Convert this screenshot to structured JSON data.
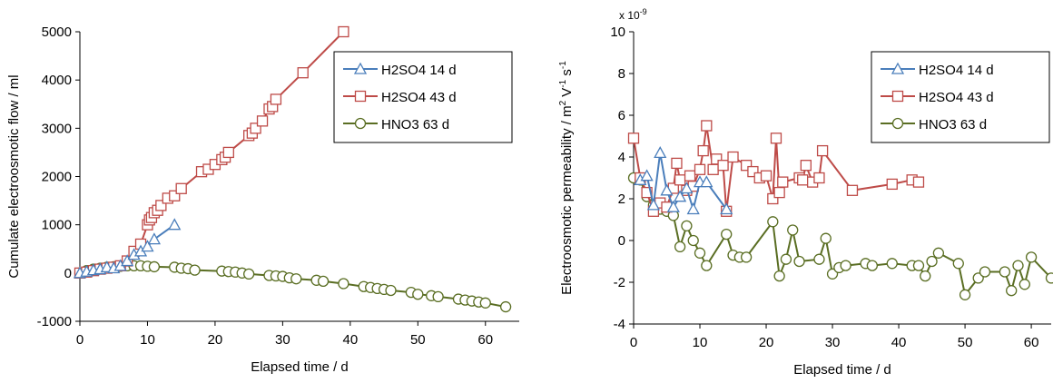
{
  "chart_data": [
    {
      "type": "line",
      "xlabel": "Elapsed time / d",
      "ylabel": "Cumulate electroosmotic flow / ml",
      "xlim": [
        0,
        65
      ],
      "ylim": [
        -1000,
        5000
      ],
      "xticks": [
        "0",
        "10",
        "20",
        "30",
        "40",
        "50",
        "60"
      ],
      "yticks": [
        "-1000",
        "0",
        "1000",
        "2000",
        "3000",
        "4000",
        "5000"
      ],
      "grid": false,
      "legend_position": "top-right",
      "series": [
        {
          "name": "H2SO4 14 d",
          "color": "#4a7ebb",
          "marker": "triangle",
          "x": [
            0,
            1,
            2,
            3,
            4,
            5,
            6,
            7,
            8,
            9,
            10,
            11,
            14
          ],
          "y": [
            0,
            30,
            60,
            80,
            120,
            100,
            150,
            250,
            380,
            450,
            550,
            700,
            1000
          ]
        },
        {
          "name": "H2SO4 43 d",
          "color": "#be4b48",
          "marker": "square",
          "x": [
            0,
            1,
            2,
            3,
            4,
            5,
            6,
            7,
            8,
            9,
            10,
            10.3,
            10.6,
            11,
            11.5,
            12,
            13,
            14,
            15,
            18,
            19,
            20,
            21,
            21.5,
            22,
            25,
            25.5,
            26,
            27,
            28,
            28.5,
            29,
            33,
            39
          ],
          "y": [
            0,
            20,
            50,
            80,
            100,
            120,
            150,
            250,
            450,
            600,
            1000,
            1100,
            1150,
            1250,
            1300,
            1400,
            1550,
            1600,
            1750,
            2100,
            2150,
            2250,
            2350,
            2400,
            2500,
            2850,
            2900,
            3000,
            3150,
            3400,
            3450,
            3600,
            4150,
            5000
          ]
        },
        {
          "name": "HNO3 63 d",
          "color": "#5a6e23",
          "marker": "circle",
          "x": [
            0,
            1,
            2,
            3,
            4,
            5,
            6,
            7,
            8,
            9,
            10,
            11,
            14,
            15,
            16,
            17,
            21,
            22,
            23,
            24,
            25,
            28,
            29,
            30,
            31,
            32,
            35,
            36,
            39,
            42,
            43,
            44,
            45,
            46,
            49,
            50,
            52,
            53,
            56,
            57,
            58,
            59,
            60,
            63
          ],
          "y": [
            0,
            50,
            80,
            100,
            120,
            130,
            140,
            150,
            150,
            150,
            140,
            130,
            120,
            100,
            90,
            60,
            40,
            30,
            20,
            0,
            -20,
            -50,
            -60,
            -70,
            -100,
            -120,
            -150,
            -170,
            -220,
            -280,
            -300,
            -320,
            -340,
            -360,
            -400,
            -440,
            -470,
            -490,
            -540,
            -560,
            -580,
            -600,
            -620,
            -700
          ]
        }
      ]
    },
    {
      "type": "line",
      "xlabel": "Elapsed time / d",
      "ylabel_parts": [
        "Electroosmotic permeability / m",
        "2",
        " V",
        "-1",
        " s",
        "-1"
      ],
      "multiplier": [
        "x 10",
        "-9"
      ],
      "xlim": [
        0,
        63
      ],
      "ylim": [
        -4,
        10
      ],
      "xticks": [
        "0",
        "10",
        "20",
        "30",
        "40",
        "50",
        "60"
      ],
      "yticks": [
        "-4",
        "-2",
        "0",
        "2",
        "4",
        "6",
        "8",
        "10"
      ],
      "grid": false,
      "legend_position": "top-right",
      "series": [
        {
          "name": "H2SO4 14 d",
          "color": "#4a7ebb",
          "marker": "triangle",
          "x": [
            1,
            2,
            3,
            4,
            5,
            6,
            7,
            8,
            9,
            10,
            11,
            14
          ],
          "y": [
            2.9,
            3.1,
            1.7,
            4.2,
            2.4,
            1.6,
            2.1,
            2.5,
            1.5,
            2.8,
            2.8,
            1.5
          ]
        },
        {
          "name": "H2SO4 43 d",
          "color": "#be4b48",
          "marker": "square",
          "x": [
            0,
            1,
            2,
            3,
            4,
            5,
            6,
            6.5,
            7,
            8,
            8.5,
            9,
            10,
            10.5,
            11,
            12,
            12.5,
            13.5,
            14,
            15,
            17,
            18,
            19,
            20,
            21,
            21.5,
            22,
            22.5,
            25,
            25.5,
            26,
            27,
            28,
            28.5,
            33,
            39,
            42,
            43
          ],
          "y": [
            4.9,
            3.0,
            2.3,
            1.4,
            1.8,
            1.6,
            2.5,
            3.7,
            2.9,
            2.4,
            3.1,
            2.6,
            3.4,
            4.3,
            5.5,
            3.4,
            3.9,
            3.6,
            1.4,
            4.0,
            3.6,
            3.3,
            3.0,
            3.1,
            2.0,
            4.9,
            2.3,
            2.8,
            3.0,
            2.9,
            3.6,
            2.8,
            3.0,
            4.3,
            2.4,
            2.7,
            2.9,
            2.8
          ]
        },
        {
          "name": "HNO3 63 d",
          "color": "#5a6e23",
          "marker": "circle",
          "x": [
            0,
            1,
            2,
            3,
            4,
            5,
            6,
            7,
            8,
            9,
            10,
            11,
            14,
            15,
            16,
            17,
            21,
            22,
            23,
            24,
            25,
            28,
            29,
            30,
            31,
            32,
            35,
            36,
            39,
            42,
            43,
            44,
            45,
            46,
            49,
            50,
            52,
            53,
            56,
            57,
            58,
            59,
            60,
            63
          ],
          "y": [
            3.0,
            2.9,
            2.1,
            1.7,
            1.5,
            1.4,
            1.2,
            -0.3,
            0.7,
            0.0,
            -0.6,
            -1.2,
            0.3,
            -0.7,
            -0.8,
            -0.8,
            0.9,
            -1.7,
            -0.9,
            0.5,
            -1.0,
            -0.9,
            0.1,
            -1.6,
            -1.3,
            -1.2,
            -1.1,
            -1.2,
            -1.1,
            -1.2,
            -1.2,
            -1.7,
            -1.0,
            -0.6,
            -1.1,
            -2.6,
            -1.8,
            -1.5,
            -1.5,
            -2.4,
            -1.2,
            -2.1,
            -0.8,
            -1.8
          ]
        }
      ]
    }
  ]
}
